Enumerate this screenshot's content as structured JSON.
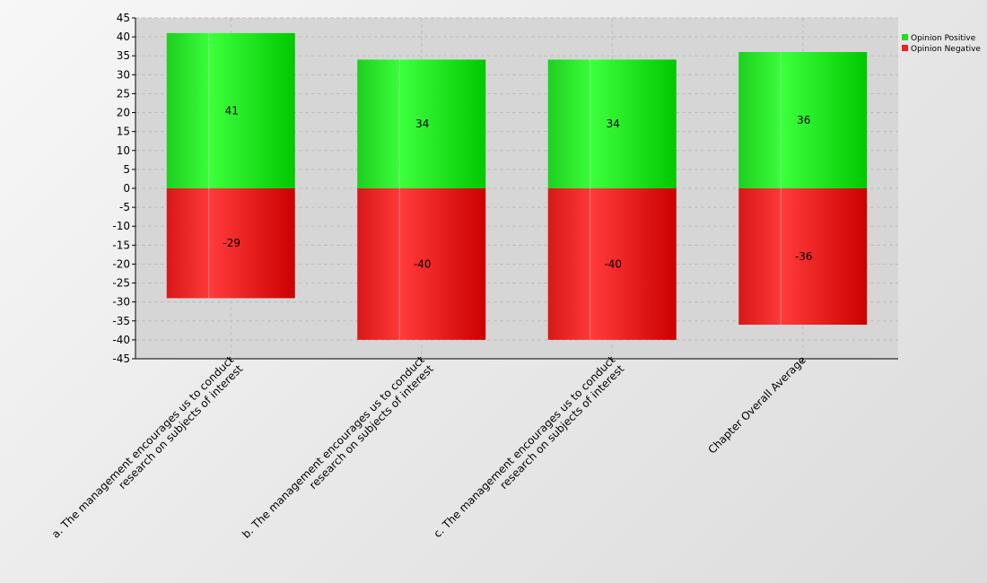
{
  "chart_data": {
    "type": "bar",
    "stacked": true,
    "categories": [
      [
        "a. The management encourages us to conduct",
        "research on subjects of interest"
      ],
      [
        "b. The management encourages us to conduct",
        "research on subjects of interest"
      ],
      [
        "c. The management encourages us to conduct",
        "research on subjects of interest"
      ],
      [
        "Chapter Overall Average"
      ]
    ],
    "series": [
      {
        "name": "Opinion Positive",
        "color": "#22dd22",
        "values": [
          41,
          34,
          34,
          36
        ]
      },
      {
        "name": "Opinion Negative",
        "color": "#ee2222",
        "values": [
          -29,
          -40,
          -40,
          -36
        ]
      }
    ],
    "ylim": [
      -45,
      45
    ],
    "ytick_step": 5,
    "grid": true,
    "legend_position": "top-right"
  }
}
